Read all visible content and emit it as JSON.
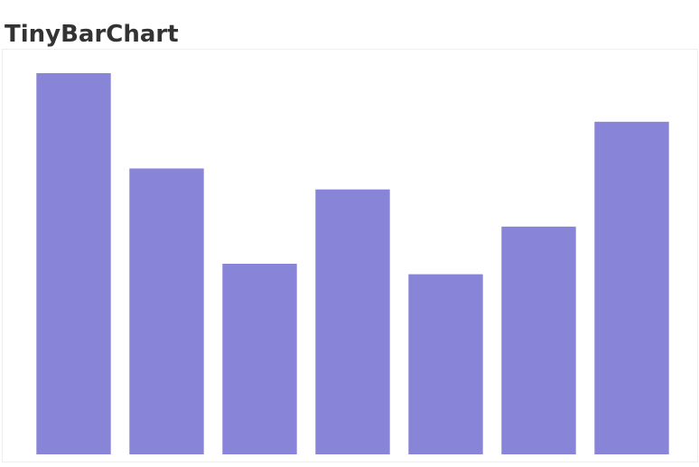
{
  "page": {
    "title": "TinyBarChart"
  },
  "colors": {
    "bar_fill": "#8884d8",
    "frame_border": "#eeeeee",
    "title_text": "#333333"
  },
  "chart_data": {
    "type": "bar",
    "title": "",
    "xlabel": "",
    "ylabel": "",
    "categories": [
      "",
      "",
      "",
      "",
      "",
      "",
      ""
    ],
    "values": [
      4000,
      3000,
      2000,
      2780,
      1890,
      2390,
      3490
    ],
    "ylim": [
      0,
      4000
    ],
    "grid": false,
    "legend": false
  }
}
